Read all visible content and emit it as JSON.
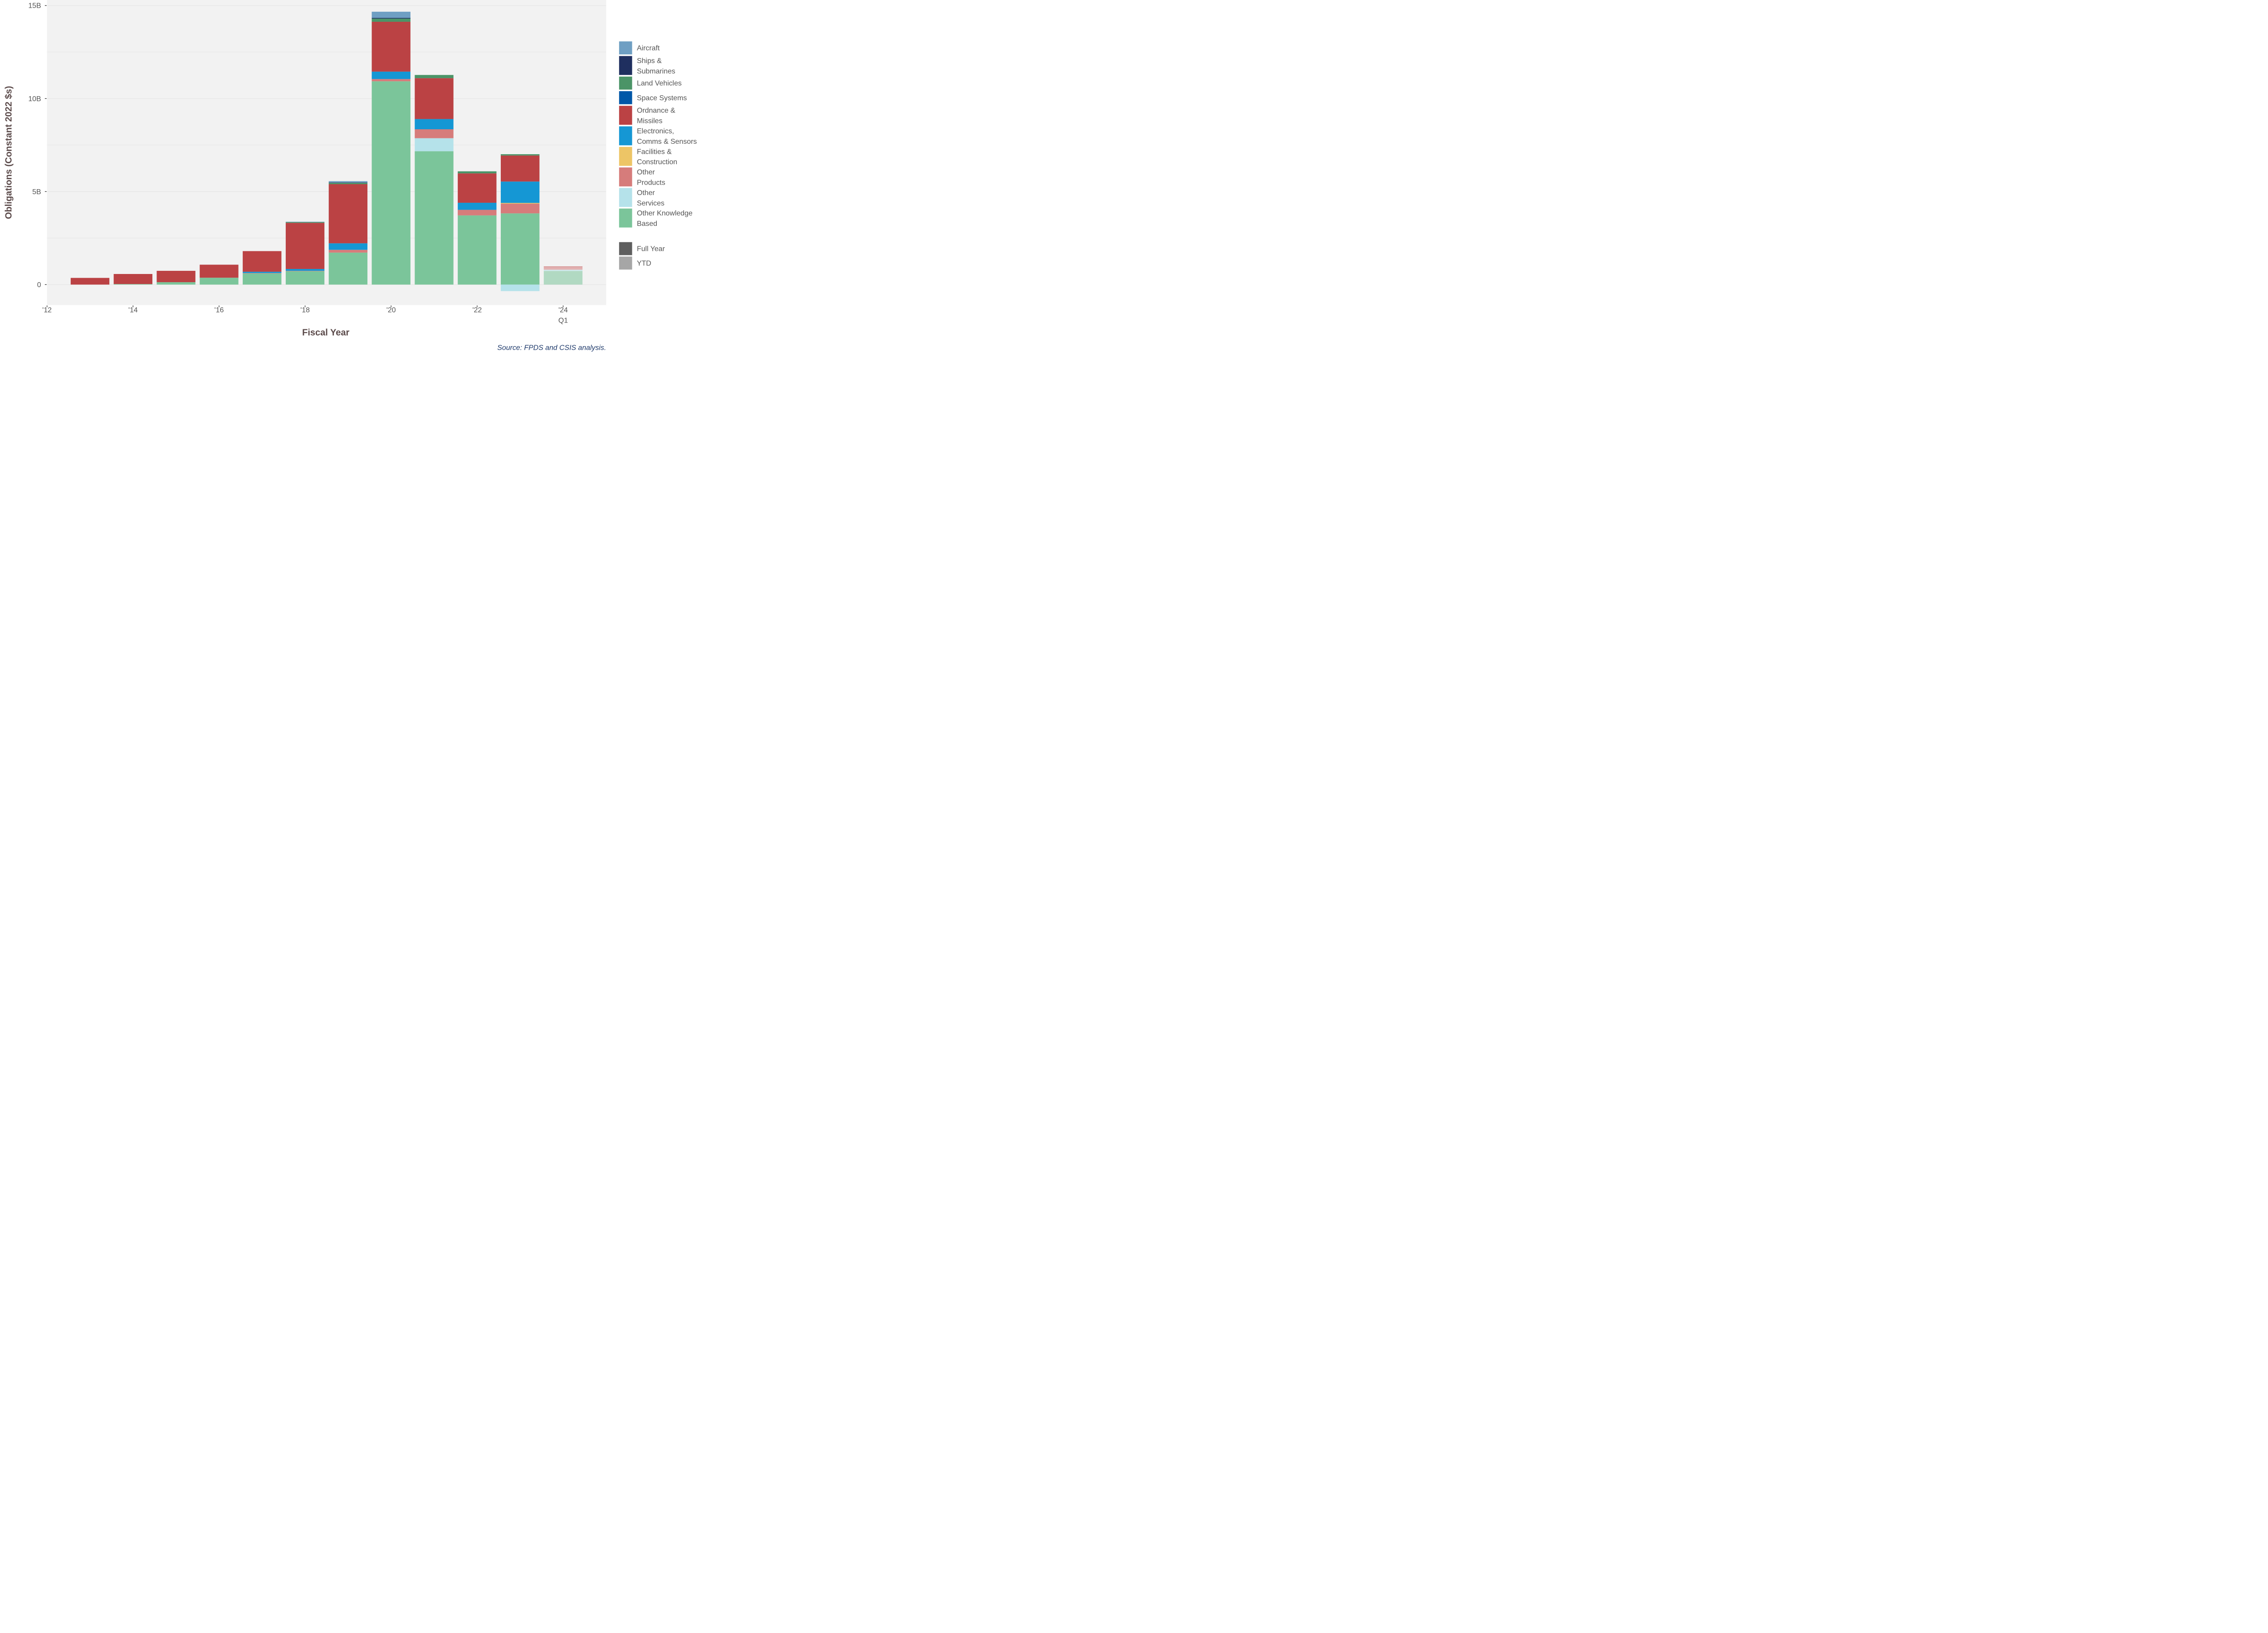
{
  "colors": {
    "Aircraft": "#6f9fc3",
    "Ships & Submarines": "#1f2f5f",
    "Land Vehicles": "#4b9467",
    "Space Systems": "#0057a8",
    "Ordnance & Missiles": "#bb4244",
    "Electronics, Comms & Sensors": "#1597d4",
    "Facilities & Construction": "#edc566",
    "Other Products": "#d67c7b",
    "Other Services": "#b5e2ea",
    "Other Knowledge Based": "#7bc59a"
  },
  "legend": {
    "categories": [
      {
        "key": "Aircraft",
        "lines": [
          "Aircraft"
        ]
      },
      {
        "key": "Ships & Submarines",
        "lines": [
          "Ships &",
          "Submarines"
        ]
      },
      {
        "key": "Land Vehicles",
        "lines": [
          "Land Vehicles"
        ]
      },
      {
        "key": "Space Systems",
        "lines": [
          "Space Systems"
        ]
      },
      {
        "key": "Ordnance & Missiles",
        "lines": [
          "Ordnance &",
          "Missiles"
        ]
      },
      {
        "key": "Electronics, Comms & Sensors",
        "lines": [
          "Electronics,",
          "Comms & Sensors"
        ]
      },
      {
        "key": "Facilities & Construction",
        "lines": [
          "Facilities &",
          "Construction"
        ]
      },
      {
        "key": "Other Products",
        "lines": [
          "Other",
          "Products"
        ]
      },
      {
        "key": "Other Services",
        "lines": [
          "Other",
          "Services"
        ]
      },
      {
        "key": "Other Knowledge Based",
        "lines": [
          "Other Knowledge",
          "Based"
        ]
      }
    ],
    "period": [
      {
        "label": "Full Year",
        "color": "#5e5e5e"
      },
      {
        "label": "YTD",
        "color": "#a6a6a6"
      }
    ]
  },
  "source": "Source: FPDS and CSIS analysis.",
  "chart_data": {
    "type": "bar",
    "stacked": true,
    "xlabel": "Fiscal Year",
    "ylabel": "Obligations (Constant 2022 $s)",
    "xlim": [
      2012,
      2025
    ],
    "ylim": [
      -1.1,
      15.3
    ],
    "x_ticks": [
      {
        "value": 2012,
        "label": "'12"
      },
      {
        "value": 2014,
        "label": "'14"
      },
      {
        "value": 2016,
        "label": "'16"
      },
      {
        "value": 2018,
        "label": "'18"
      },
      {
        "value": 2020,
        "label": "'20"
      },
      {
        "value": 2022,
        "label": "'22"
      },
      {
        "value": 2024,
        "label": "'24",
        "sublabel": "Q1"
      }
    ],
    "y_ticks": [
      {
        "value": 0,
        "label": "0"
      },
      {
        "value": 5,
        "label": "5B"
      },
      {
        "value": 10,
        "label": "10B"
      },
      {
        "value": 15,
        "label": "15B"
      }
    ],
    "grid": true,
    "legend_position": "right",
    "units": "billions of constant 2022 dollars",
    "stack_order": [
      "Other Knowledge Based",
      "Other Services",
      "Other Products",
      "Facilities & Construction",
      "Electronics, Comms & Sensors",
      "Ordnance & Missiles",
      "Space Systems",
      "Land Vehicles",
      "Ships & Submarines",
      "Aircraft"
    ],
    "x": [
      2013,
      2014,
      2015,
      2016,
      2017,
      2018,
      2019,
      2020,
      2021,
      2022,
      2023,
      2024
    ],
    "period": [
      "Full Year",
      "Full Year",
      "Full Year",
      "Full Year",
      "Full Year",
      "Full Year",
      "Full Year",
      "Full Year",
      "Full Year",
      "Full Year",
      "Full Year",
      "YTD"
    ],
    "series": [
      {
        "name": "Other Knowledge Based",
        "values": [
          0.0,
          0.03,
          0.13,
          0.37,
          0.6,
          0.72,
          1.72,
          10.93,
          7.17,
          3.72,
          3.83,
          0.73
        ]
      },
      {
        "name": "Other Services",
        "values": [
          0.0,
          0.0,
          0.0,
          0.0,
          0.0,
          0.0,
          0.0,
          0.0,
          0.7,
          0.0,
          -0.35,
          0.07
        ]
      },
      {
        "name": "Other Products",
        "values": [
          0.0,
          0.0,
          0.0,
          0.0,
          0.02,
          0.02,
          0.15,
          0.12,
          0.48,
          0.3,
          0.52,
          0.14
        ]
      },
      {
        "name": "Facilities & Construction",
        "values": [
          0.0,
          0.0,
          0.0,
          0.0,
          0.0,
          0.0,
          0.0,
          0.0,
          0.0,
          0.0,
          0.04,
          0.0
        ]
      },
      {
        "name": "Electronics, Comms & Sensors",
        "values": [
          0.0,
          0.0,
          0.0,
          0.0,
          0.07,
          0.1,
          0.35,
          0.4,
          0.55,
          0.38,
          1.15,
          0.0
        ]
      },
      {
        "name": "Ordnance & Missiles",
        "values": [
          0.36,
          0.54,
          0.61,
          0.7,
          1.11,
          2.48,
          3.18,
          2.68,
          2.2,
          1.58,
          1.4,
          0.04
        ]
      },
      {
        "name": "Space Systems",
        "values": [
          0.0,
          0.0,
          0.0,
          0.0,
          0.0,
          0.0,
          0.0,
          0.0,
          0.0,
          0.0,
          0.0,
          0.0
        ]
      },
      {
        "name": "Land Vehicles",
        "values": [
          0.0,
          0.0,
          0.0,
          0.0,
          0.0,
          0.04,
          0.07,
          0.17,
          0.17,
          0.11,
          0.07,
          0.0
        ]
      },
      {
        "name": "Ships & Submarines",
        "values": [
          0.0,
          0.0,
          0.0,
          0.0,
          0.0,
          0.0,
          0.02,
          0.04,
          0.0,
          0.0,
          0.0,
          0.0
        ]
      },
      {
        "name": "Aircraft",
        "values": [
          0.0,
          0.0,
          0.0,
          0.0,
          0.0,
          0.02,
          0.07,
          0.33,
          0.0,
          0.0,
          0.0,
          0.0
        ]
      }
    ]
  }
}
